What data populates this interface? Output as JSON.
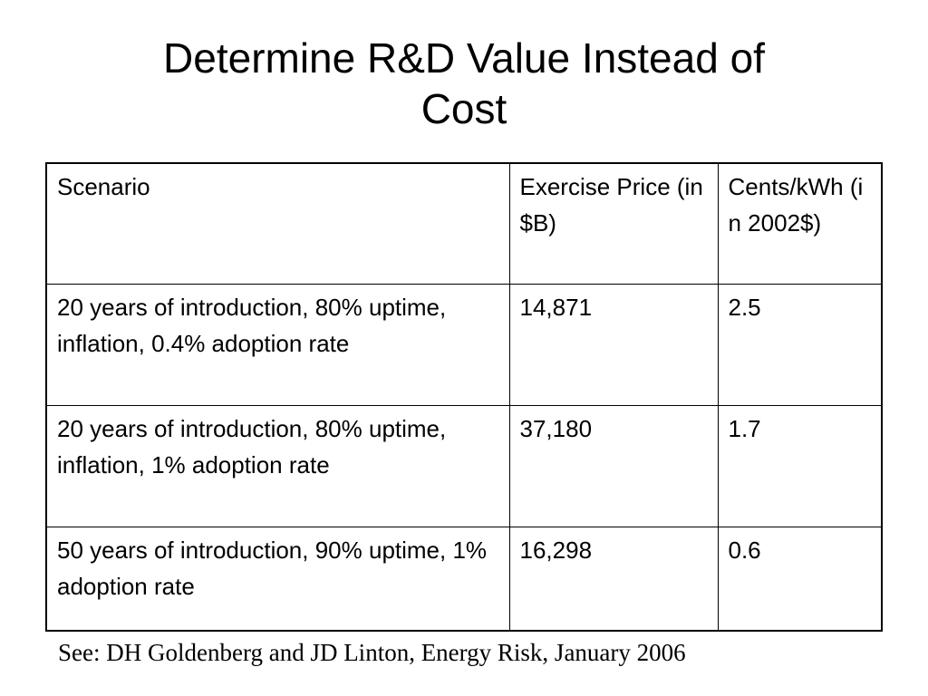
{
  "slide": {
    "title_line1": "Determine R&D Value Instead of",
    "title_line2": "Cost",
    "table": {
      "headers": {
        "scenario": "Scenario",
        "exercise_price": "Exercise Price (in $B)",
        "cents_per_kwh": "Cents/kWh (in 2002$)"
      },
      "rows": [
        {
          "scenario": "20 years of introduction, 80% uptime, inflation, 0.4% adoption rate",
          "exercise_price": "14,871",
          "cents_per_kwh": "2.5"
        },
        {
          "scenario": "20 years of introduction, 80% uptime, inflation, 1% adoption rate",
          "exercise_price": "37,180",
          "cents_per_kwh": "1.7"
        },
        {
          "scenario": "50 years of introduction, 90% uptime, 1% adoption rate",
          "exercise_price": "16,298",
          "cents_per_kwh": "0.6"
        }
      ]
    },
    "citation": "See: DH Goldenberg and JD Linton, Energy Risk, January 2006"
  }
}
